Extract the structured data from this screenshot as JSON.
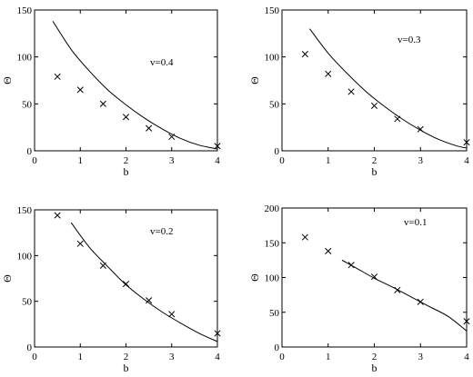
{
  "chart_data": [
    {
      "type": "scatter",
      "annotation": "v=0.4",
      "xlabel": "b",
      "ylabel": "Θ",
      "xlim": [
        0,
        4
      ],
      "ylim": [
        0,
        150
      ],
      "xticks": [
        "0",
        "1",
        "2",
        "3",
        "4"
      ],
      "yticks": [
        "0",
        "50",
        "100",
        "150"
      ],
      "grid": false,
      "series": [
        {
          "kind": "markers",
          "marker": "x",
          "x": [
            0.5,
            1.0,
            1.5,
            2.0,
            2.5,
            3.0,
            4.0
          ],
          "y": [
            79,
            65,
            50,
            36,
            24,
            15,
            5
          ]
        },
        {
          "kind": "line",
          "x": [
            0.4,
            0.8,
            1.2,
            1.6,
            2.0,
            2.4,
            2.8,
            3.2,
            3.6,
            4.0
          ],
          "y": [
            138,
            108,
            85,
            65,
            49,
            35,
            23,
            13,
            6,
            2
          ]
        }
      ]
    },
    {
      "type": "scatter",
      "annotation": "v=0.3",
      "xlabel": "b",
      "ylabel": "Θ",
      "xlim": [
        0,
        4
      ],
      "ylim": [
        0,
        150
      ],
      "xticks": [
        "0",
        "1",
        "2",
        "3",
        "4"
      ],
      "yticks": [
        "0",
        "50",
        "100",
        "150"
      ],
      "grid": false,
      "series": [
        {
          "kind": "markers",
          "marker": "x",
          "x": [
            0.5,
            1.0,
            1.5,
            2.0,
            2.5,
            3.0,
            4.0
          ],
          "y": [
            103,
            82,
            63,
            48,
            34,
            23,
            9
          ]
        },
        {
          "kind": "line",
          "x": [
            0.6,
            1.0,
            1.4,
            1.8,
            2.2,
            2.6,
            3.0,
            3.4,
            3.8,
            4.0
          ],
          "y": [
            130,
            104,
            83,
            64,
            48,
            34,
            22,
            12,
            5,
            3
          ]
        }
      ]
    },
    {
      "type": "scatter",
      "annotation": "v=0.2",
      "xlabel": "b",
      "ylabel": "Θ",
      "xlim": [
        0,
        4
      ],
      "ylim": [
        0,
        150
      ],
      "xticks": [
        "0",
        "1",
        "2",
        "3",
        "4"
      ],
      "yticks": [
        "0",
        "50",
        "100",
        "150"
      ],
      "grid": false,
      "series": [
        {
          "kind": "markers",
          "marker": "x",
          "x": [
            0.5,
            1.0,
            1.5,
            2.0,
            2.5,
            3.0,
            4.0
          ],
          "y": [
            144,
            113,
            89,
            69,
            51,
            36,
            15
          ]
        },
        {
          "kind": "line",
          "x": [
            0.8,
            1.2,
            1.6,
            2.0,
            2.4,
            2.8,
            3.2,
            3.6,
            4.0
          ],
          "y": [
            136,
            109,
            88,
            68,
            52,
            38,
            26,
            15,
            6
          ]
        }
      ]
    },
    {
      "type": "scatter",
      "annotation": "v=0.1",
      "xlabel": "b",
      "ylabel": "Θ",
      "xlim": [
        0,
        4
      ],
      "ylim": [
        0,
        200
      ],
      "xticks": [
        "0",
        "1",
        "2",
        "3",
        "4"
      ],
      "yticks": [
        "0",
        "50",
        "100",
        "150",
        "200"
      ],
      "grid": false,
      "series": [
        {
          "kind": "markers",
          "marker": "x",
          "x": [
            0.5,
            1.0,
            1.5,
            2.0,
            2.5,
            3.0,
            4.0
          ],
          "y": [
            158,
            138,
            118,
            101,
            82,
            65,
            37
          ]
        },
        {
          "kind": "line",
          "x": [
            1.3,
            1.6,
            2.0,
            2.4,
            2.8,
            3.2,
            3.6,
            4.0
          ],
          "y": [
            125,
            114,
            99,
            86,
            72,
            58,
            44,
            23
          ]
        }
      ]
    }
  ]
}
